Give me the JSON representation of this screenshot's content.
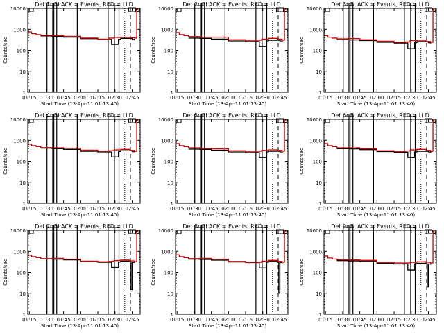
{
  "chart_data": [
    {
      "type": "line",
      "title": "Det 1r BLACK = Events, RED = LLD",
      "xlabel": "Start Time (13-Apr-11 01:13:40)",
      "ylabel": "Counts/sec",
      "yscale": "log",
      "ylim": [
        1,
        10000
      ],
      "xlim_minutes_from_0115": [
        -1.33,
        97
      ],
      "xticks": [
        "01:15",
        "01:30",
        "01:45",
        "02:00",
        "02:15",
        "02:30",
        "02:45"
      ],
      "yticks": [
        "1",
        "10",
        "100",
        "1000",
        "10000"
      ],
      "series": [
        {
          "name": "Events",
          "color": "#000000",
          "x": [
            -1.3,
            10,
            13,
            20,
            30,
            45,
            60,
            70,
            72,
            78,
            80,
            85,
            90,
            92
          ],
          "y": [
            null,
            480,
            480,
            460,
            420,
            360,
            330,
            330,
            190,
            330,
            370,
            370,
            330,
            300
          ]
        },
        {
          "name": "LLD",
          "color": "#cc0000",
          "x": [
            -1.3,
            2,
            6,
            10,
            20,
            30,
            45,
            60,
            70,
            74,
            80,
            88,
            92,
            94,
            95
          ],
          "y": [
            750,
            620,
            560,
            520,
            500,
            460,
            380,
            340,
            380,
            410,
            420,
            400,
            380,
            9000,
            10000
          ]
        }
      ],
      "vlines": {
        "solid": [
          15.5,
          20.5,
          21.5,
          24,
          42,
          69,
          74.5,
          78.5
        ],
        "dotted": [
          83.5
        ],
        "dashed": [
          88.5
        ],
        "dashdot": [
          101.5
        ]
      }
    },
    {
      "type": "line",
      "title": "Det 2r BLACK = Events, RED = LLD",
      "xlabel": "Start Time (13-Apr-11 01:13:40)",
      "ylabel": "Counts/sec",
      "yscale": "log",
      "ylim": [
        1,
        10000
      ],
      "xlim_minutes_from_0115": [
        -1.33,
        97
      ],
      "xticks": [
        "01:15",
        "01:30",
        "01:45",
        "02:00",
        "02:15",
        "02:30",
        "02:45"
      ],
      "yticks": [
        "1",
        "10",
        "100",
        "1000",
        "10000"
      ],
      "series": [
        {
          "name": "Events",
          "color": "#000000",
          "x": [
            10,
            13,
            20,
            30,
            45,
            60,
            70,
            72,
            78,
            80,
            85,
            90,
            92
          ],
          "y": [
            380,
            380,
            370,
            340,
            280,
            260,
            260,
            150,
            280,
            300,
            300,
            280,
            260
          ]
        },
        {
          "name": "LLD",
          "color": "#cc0000",
          "x": [
            -1.3,
            2,
            6,
            10,
            20,
            30,
            45,
            60,
            70,
            74,
            80,
            88,
            92,
            94,
            95
          ],
          "y": [
            700,
            560,
            500,
            450,
            420,
            420,
            320,
            300,
            300,
            340,
            370,
            340,
            300,
            9000,
            10000
          ]
        }
      ],
      "vlines": {
        "solid": [
          15.5,
          20.5,
          21.5,
          24,
          42,
          69,
          74.5,
          78.5
        ],
        "dotted": [
          83.5
        ],
        "dashed": [
          88.5
        ],
        "dashdot": [
          101.5
        ]
      }
    },
    {
      "type": "line",
      "title": "Det 3r BLACK = Events, RED = LLD",
      "xlabel": "Start Time (13-Apr-11 01:13:40)",
      "ylabel": "Counts/sec",
      "yscale": "log",
      "ylim": [
        1,
        10000
      ],
      "xlim_minutes_from_0115": [
        -1.33,
        97
      ],
      "xticks": [
        "01:15",
        "01:30",
        "01:45",
        "02:00",
        "02:15",
        "02:30",
        "02:45"
      ],
      "yticks": [
        "1",
        "10",
        "100",
        "1000",
        "10000"
      ],
      "series": [
        {
          "name": "Events",
          "color": "#000000",
          "x": [
            10,
            13,
            20,
            30,
            45,
            60,
            70,
            72,
            78,
            80,
            85,
            90,
            92
          ],
          "y": [
            320,
            320,
            310,
            290,
            240,
            220,
            220,
            120,
            230,
            260,
            260,
            230,
            210
          ]
        },
        {
          "name": "LLD",
          "color": "#cc0000",
          "x": [
            -1.3,
            2,
            6,
            10,
            20,
            30,
            45,
            60,
            70,
            74,
            80,
            88,
            92,
            94,
            95
          ],
          "y": [
            500,
            420,
            380,
            350,
            360,
            320,
            270,
            240,
            250,
            290,
            300,
            260,
            240,
            9000,
            10000
          ]
        }
      ],
      "vlines": {
        "solid": [
          15.5,
          20.5,
          21.5,
          24,
          42,
          69,
          74.5,
          78.5
        ],
        "dotted": [
          83.5
        ],
        "dashed": [
          88.5
        ],
        "dashdot": [
          101.5
        ]
      }
    },
    {
      "type": "line",
      "title": "Det 4r BLACK = Events, RED = LLD",
      "xlabel": "Start Time (13-Apr-11 01:13:40)",
      "ylabel": "Counts/sec",
      "yscale": "log",
      "ylim": [
        1,
        10000
      ],
      "xlim_minutes_from_0115": [
        -1.33,
        97
      ],
      "xticks": [
        "01:15",
        "01:30",
        "01:45",
        "02:00",
        "02:15",
        "02:30",
        "02:45"
      ],
      "yticks": [
        "1",
        "10",
        "100",
        "1000",
        "10000"
      ],
      "series": [
        {
          "name": "Events",
          "color": "#000000",
          "x": [
            10,
            13,
            20,
            30,
            45,
            60,
            70,
            72,
            78,
            80,
            85,
            90,
            92
          ],
          "y": [
            420,
            420,
            400,
            370,
            300,
            280,
            280,
            160,
            290,
            320,
            320,
            290,
            270
          ]
        },
        {
          "name": "LLD",
          "color": "#cc0000",
          "x": [
            -1.3,
            2,
            6,
            10,
            20,
            30,
            45,
            60,
            70,
            74,
            80,
            88,
            92,
            94,
            95
          ],
          "y": [
            650,
            560,
            500,
            450,
            440,
            420,
            340,
            310,
            320,
            350,
            370,
            330,
            300,
            9000,
            10000
          ]
        }
      ],
      "vlines": {
        "solid": [
          15.5,
          20.5,
          21.5,
          24,
          42,
          69,
          74.5,
          78.5
        ],
        "dotted": [
          83.5
        ],
        "dashed": [
          88.5
        ],
        "dashdot": [
          101.5
        ]
      }
    },
    {
      "type": "line",
      "title": "Det 5r BLACK = Events, RED = LLD",
      "xlabel": "Start Time (13-Apr-11 01:13:40)",
      "ylabel": "Counts/sec",
      "yscale": "log",
      "ylim": [
        1,
        10000
      ],
      "xlim_minutes_from_0115": [
        -1.33,
        97
      ],
      "xticks": [
        "01:15",
        "01:30",
        "01:45",
        "02:00",
        "02:15",
        "02:30",
        "02:45"
      ],
      "yticks": [
        "1",
        "10",
        "100",
        "1000",
        "10000"
      ],
      "series": [
        {
          "name": "Events",
          "color": "#000000",
          "x": [
            10,
            13,
            20,
            30,
            45,
            60,
            70,
            72,
            78,
            80,
            85,
            90,
            92
          ],
          "y": [
            380,
            380,
            370,
            340,
            280,
            260,
            260,
            150,
            280,
            300,
            300,
            280,
            260
          ]
        },
        {
          "name": "LLD",
          "color": "#cc0000",
          "x": [
            -1.3,
            2,
            6,
            10,
            20,
            30,
            45,
            60,
            70,
            74,
            80,
            88,
            92,
            94,
            95
          ],
          "y": [
            700,
            560,
            500,
            440,
            410,
            400,
            320,
            300,
            300,
            330,
            350,
            330,
            300,
            9000,
            10000
          ]
        }
      ],
      "vlines": {
        "solid": [
          15.5,
          20.5,
          21.5,
          24,
          42,
          69,
          74.5,
          78.5
        ],
        "dotted": [
          83.5
        ],
        "dashed": [
          88.5
        ],
        "dashdot": [
          101.5
        ]
      }
    },
    {
      "type": "line",
      "title": "Det 6r BLACK = Events, RED = LLD",
      "xlabel": "Start Time (13-Apr-11 01:13:40)",
      "ylabel": "Counts/sec",
      "yscale": "log",
      "ylim": [
        1,
        10000
      ],
      "xlim_minutes_from_0115": [
        -1.33,
        97
      ],
      "xticks": [
        "01:15",
        "01:30",
        "01:45",
        "02:00",
        "02:15",
        "02:30",
        "02:45"
      ],
      "yticks": [
        "1",
        "10",
        "100",
        "1000",
        "10000"
      ],
      "series": [
        {
          "name": "Events",
          "color": "#000000",
          "x": [
            10,
            13,
            20,
            30,
            45,
            60,
            70,
            72,
            78,
            80,
            85,
            90,
            92
          ],
          "y": [
            400,
            400,
            390,
            360,
            290,
            270,
            270,
            150,
            280,
            300,
            300,
            280,
            260
          ]
        },
        {
          "name": "LLD",
          "color": "#cc0000",
          "x": [
            -1.3,
            2,
            6,
            10,
            20,
            30,
            45,
            60,
            70,
            74,
            80,
            88,
            92,
            94,
            95
          ],
          "y": [
            700,
            560,
            500,
            440,
            440,
            400,
            320,
            300,
            310,
            350,
            370,
            330,
            300,
            9000,
            10000
          ]
        }
      ],
      "vlines": {
        "solid": [
          15.5,
          20.5,
          21.5,
          24,
          42,
          69,
          74.5,
          78.5
        ],
        "dotted": [
          83.5
        ],
        "dashed": [
          88.5
        ],
        "dashdot": [
          101.5
        ]
      }
    },
    {
      "type": "line",
      "title": "Det 7r BLACK = Events, RED = LLD",
      "xlabel": "Start Time (13-Apr-11 01:13:40)",
      "ylabel": "Counts/sec",
      "yscale": "log",
      "ylim": [
        1,
        10000
      ],
      "xlim_minutes_from_0115": [
        -1.33,
        97
      ],
      "xticks": [
        "01:15",
        "01:30",
        "01:45",
        "02:00",
        "02:15",
        "02:30",
        "02:45"
      ],
      "yticks": [
        "1",
        "10",
        "100",
        "1000",
        "10000"
      ],
      "series": [
        {
          "name": "Events",
          "color": "#000000",
          "x": [
            10,
            13,
            20,
            30,
            45,
            60,
            70,
            72,
            78,
            80,
            85,
            88,
            89,
            90,
            92
          ],
          "y": [
            430,
            430,
            420,
            390,
            320,
            300,
            300,
            170,
            310,
            340,
            340,
            320,
            15,
            300,
            280
          ]
        },
        {
          "name": "LLD",
          "color": "#cc0000",
          "x": [
            -1.3,
            2,
            6,
            10,
            20,
            30,
            45,
            60,
            70,
            74,
            80,
            88,
            92,
            94,
            95
          ],
          "y": [
            650,
            560,
            500,
            450,
            460,
            420,
            340,
            320,
            330,
            360,
            380,
            350,
            320,
            9000,
            10000
          ]
        }
      ],
      "vlines": {
        "solid": [
          15.5,
          20.5,
          21.5,
          24,
          42,
          69,
          74.5,
          78.5
        ],
        "dotted": [
          83.5
        ],
        "dashed": [
          88.5
        ],
        "dashdot": [
          101.5
        ]
      }
    },
    {
      "type": "line",
      "title": "Det 8r BLACK = Events, RED = LLD",
      "xlabel": "Start Time (13-Apr-11 01:13:40)",
      "ylabel": "Counts/sec",
      "yscale": "log",
      "ylim": [
        1,
        10000
      ],
      "xlim_minutes_from_0115": [
        -1.33,
        97
      ],
      "xticks": [
        "01:15",
        "01:30",
        "01:45",
        "02:00",
        "02:15",
        "02:30",
        "02:45"
      ],
      "yticks": [
        "1",
        "10",
        "100",
        "1000",
        "10000"
      ],
      "series": [
        {
          "name": "Events",
          "color": "#000000",
          "x": [
            10,
            13,
            20,
            30,
            45,
            60,
            70,
            72,
            78,
            80,
            85,
            88,
            89,
            90,
            92
          ],
          "y": [
            420,
            420,
            410,
            380,
            310,
            290,
            290,
            160,
            300,
            330,
            330,
            300,
            10,
            290,
            270
          ]
        },
        {
          "name": "LLD",
          "color": "#cc0000",
          "x": [
            -1.3,
            2,
            6,
            10,
            20,
            30,
            45,
            60,
            70,
            74,
            80,
            88,
            92,
            94,
            95
          ],
          "y": [
            680,
            560,
            500,
            450,
            460,
            420,
            330,
            300,
            300,
            340,
            370,
            330,
            300,
            9000,
            10000
          ]
        }
      ],
      "vlines": {
        "solid": [
          15.5,
          20.5,
          21.5,
          24,
          42,
          69,
          74.5,
          78.5
        ],
        "dotted": [
          83.5
        ],
        "dashed": [
          88.5
        ],
        "dashdot": [
          101.5
        ]
      }
    },
    {
      "type": "line",
      "title": "Det 9r BLACK = Events, RED = LLD",
      "xlabel": "Start Time (13-Apr-11 01:13:40)",
      "ylabel": "Counts/sec",
      "yscale": "log",
      "ylim": [
        1,
        10000
      ],
      "xlim_minutes_from_0115": [
        -1.33,
        97
      ],
      "xticks": [
        "01:15",
        "01:30",
        "01:45",
        "02:00",
        "02:15",
        "02:30",
        "02:45"
      ],
      "yticks": [
        "1",
        "10",
        "100",
        "1000",
        "10000"
      ],
      "series": [
        {
          "name": "Events",
          "color": "#000000",
          "x": [
            10,
            13,
            20,
            30,
            45,
            60,
            70,
            72,
            78,
            80,
            85,
            88,
            89,
            90,
            92
          ],
          "y": [
            360,
            360,
            350,
            330,
            270,
            250,
            250,
            130,
            250,
            270,
            270,
            250,
            20,
            250,
            230
          ]
        },
        {
          "name": "LLD",
          "color": "#cc0000",
          "x": [
            -1.3,
            2,
            6,
            10,
            20,
            30,
            45,
            60,
            70,
            74,
            80,
            88,
            92,
            94,
            95
          ],
          "y": [
            600,
            480,
            430,
            400,
            390,
            370,
            300,
            280,
            280,
            300,
            320,
            300,
            280,
            9000,
            10000
          ]
        }
      ],
      "vlines": {
        "solid": [
          15.5,
          20.5,
          21.5,
          24,
          42,
          69,
          74.5,
          78.5
        ],
        "dotted": [
          83.5
        ],
        "dashed": [
          88.5
        ],
        "dashdot": [
          101.5
        ]
      }
    }
  ]
}
